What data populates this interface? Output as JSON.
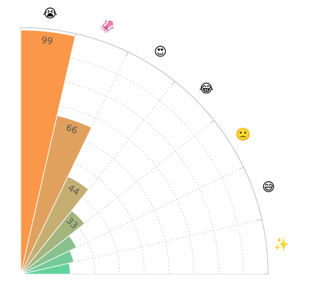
{
  "chart_data": {
    "type": "bar",
    "subtype": "polar-radial-bar",
    "categories": [
      "😭",
      "🦑",
      "😍",
      "😂",
      "🙁",
      "😅",
      "✨"
    ],
    "series": [
      {
        "values": [
          99,
          66,
          44,
          33,
          25,
          22,
          20
        ]
      }
    ],
    "data_labels": [
      "99",
      "66",
      "44",
      "33"
    ],
    "rlim": [
      0,
      100
    ],
    "grid": true,
    "legend": "none",
    "colors": [
      "#fb9748",
      "#e1a15e",
      "#c4ae72",
      "#a4b67e",
      "#88c18e",
      "#74cb97",
      "#62d29c"
    ]
  }
}
